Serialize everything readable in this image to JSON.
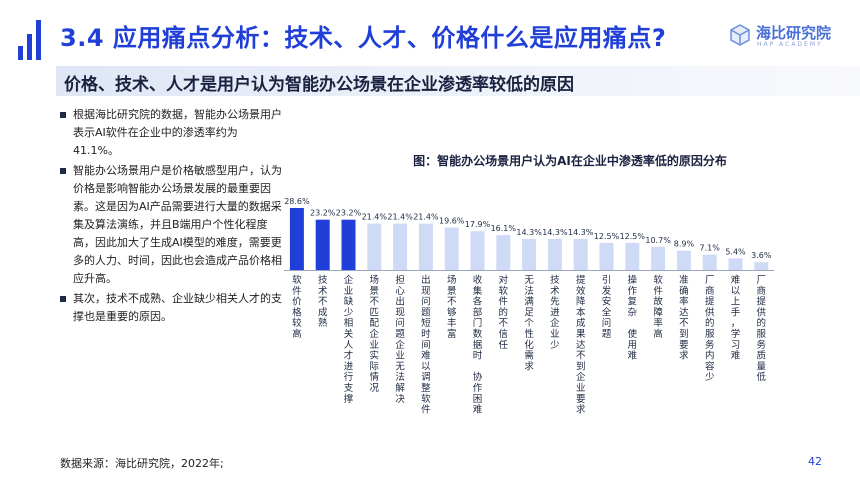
{
  "header": {
    "title": "3.4 应用痛点分析：技术、人才、价格什么是应用痛点?",
    "logo_name": "海比研究院",
    "logo_sub": "HAP ACADEMY"
  },
  "subtitle": "价格、技术、人才是用户认为智能办公场景在企业渗透率较低的原因",
  "bullets": [
    "根据海比研究院的数据，智能办公场景用户表示AI软件在企业中的渗透率约为41.1%。",
    "智能办公场景用户是价格敏感型用户，认为价格是影响智能办公场景发展的最重要因素。这是因为AI产品需要进行大量的数据采集及算法演练，并且B端用户个性化程度高，因此加大了生成AI模型的难度，需要更多的人力、时间，因此也会造成产品价格相应升高。",
    "其次，技术不成熟、企业缺少相关人才的支撑也是重要的原因。"
  ],
  "footer": {
    "source": "数据来源：海比研究院，2022年;",
    "page": "42"
  },
  "colors": {
    "accent": "#1f3fd8",
    "highlight_bar": "#1f3fd8",
    "normal_bar": "#cfdaf6"
  },
  "chart_data": {
    "type": "bar",
    "title": "图：智能办公场景用户认为AI在企业中渗透率低的原因分布",
    "categories": [
      "软件价格较高",
      "技术不成熟",
      "企业缺少相关人才进行支撑",
      "场景不匹配企业实际情况",
      "担心出现问题企业无法解决",
      "出现问题短时间难以调整软件",
      "场景不够丰富",
      "收集各部门数据时　协作困难",
      "对软件的不信任",
      "无法满足个性化需求",
      "技术先进企业少",
      "提效降本成果达不到企业要求",
      "引发安全问题",
      "操作复杂　使用难",
      "软件故障率高",
      "准确率达不到要求",
      "厂商提供的服务内容少",
      "难以上手，学习难",
      "厂商提供的服务质量低"
    ],
    "values": [
      28.6,
      23.2,
      23.2,
      21.4,
      21.4,
      21.4,
      19.6,
      17.9,
      16.1,
      14.3,
      14.3,
      14.3,
      12.5,
      12.5,
      10.7,
      8.9,
      7.1,
      5.4,
      3.6
    ],
    "value_labels": [
      "28.6%",
      "23.2%",
      "23.2%",
      "21.4%",
      "21.4%",
      "21.4%",
      "19.6%",
      "17.9%",
      "16.1%",
      "14.3%",
      "14.3%",
      "14.3%",
      "12.5%",
      "12.5%",
      "10.7%",
      "8.9%",
      "7.1%",
      "5.4%",
      "3.6%"
    ],
    "highlighted": [
      0,
      1,
      2
    ],
    "ylim": [
      0,
      30
    ],
    "grid": false,
    "legend": "none"
  }
}
